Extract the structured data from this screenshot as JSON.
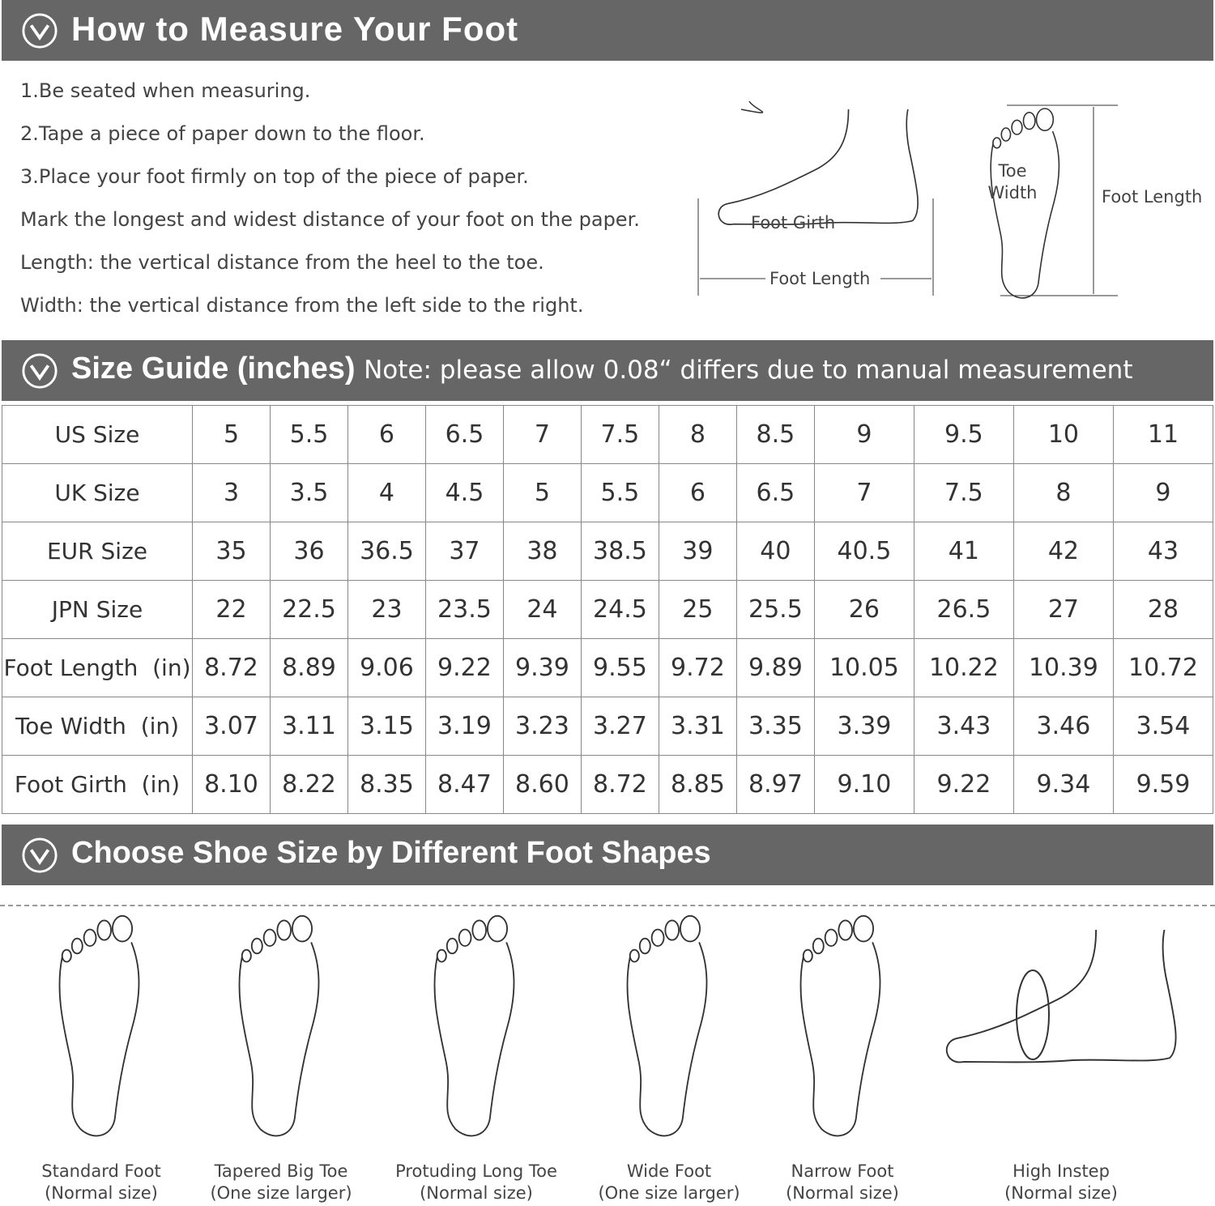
{
  "measure": {
    "title": "How to Measure Your Foot",
    "steps": [
      "1.Be seated when measuring.",
      "2.Tape a piece of paper down to the floor.",
      "3.Place your foot firmly on top of the piece of paper.",
      "Mark the longest and widest distance of your foot on the paper.",
      "Length: the vertical distance from the heel to the toe.",
      "Width: the vertical distance from the left side to the right."
    ],
    "side_diagram": {
      "girth": "Foot Girth",
      "length": "Foot Length"
    },
    "top_diagram": {
      "toe_width": [
        "Toe",
        "Width"
      ],
      "length": "Foot Length"
    }
  },
  "size_guide": {
    "title": "Size Guide (inches)",
    "note": "Note: please allow 0.08“ differs due to manual measurement",
    "rows": [
      [
        "US Size",
        "5",
        "5.5",
        "6",
        "6.5",
        "7",
        "7.5",
        "8",
        "8.5",
        "9",
        "9.5",
        "10",
        "11"
      ],
      [
        "UK Size",
        "3",
        "3.5",
        "4",
        "4.5",
        "5",
        "5.5",
        "6",
        "6.5",
        "7",
        "7.5",
        "8",
        "9"
      ],
      [
        "EUR Size",
        "35",
        "36",
        "36.5",
        "37",
        "38",
        "38.5",
        "39",
        "40",
        "40.5",
        "41",
        "42",
        "43"
      ],
      [
        "JPN Size",
        "22",
        "22.5",
        "23",
        "23.5",
        "24",
        "24.5",
        "25",
        "25.5",
        "26",
        "26.5",
        "27",
        "28"
      ],
      [
        "Foot Length  (in)",
        "8.72",
        "8.89",
        "9.06",
        "9.22",
        "9.39",
        "9.55",
        "9.72",
        "9.89",
        "10.05",
        "10.22",
        "10.39",
        "10.72"
      ],
      [
        "Toe Width  (in)",
        "3.07",
        "3.11",
        "3.15",
        "3.19",
        "3.23",
        "3.27",
        "3.31",
        "3.35",
        "3.39",
        "3.43",
        "3.46",
        "3.54"
      ],
      [
        "Foot Girth  (in)",
        "8.10",
        "8.22",
        "8.35",
        "8.47",
        "8.60",
        "8.72",
        "8.85",
        "8.97",
        "9.10",
        "9.22",
        "9.34",
        "9.59"
      ]
    ]
  },
  "shapes": {
    "title": "Choose Shoe Size by Different Foot Shapes",
    "items": [
      {
        "name": "Standard Foot",
        "note": "(Normal size)"
      },
      {
        "name": "Tapered Big Toe",
        "note": "(One size larger)"
      },
      {
        "name": "Protuding Long Toe",
        "note": "(Normal size)"
      },
      {
        "name": "Wide Foot",
        "note": "(One size larger)"
      },
      {
        "name": "Narrow Foot",
        "note": "(Normal size)"
      },
      {
        "name": "High Instep",
        "note": "(Normal size)"
      }
    ]
  }
}
